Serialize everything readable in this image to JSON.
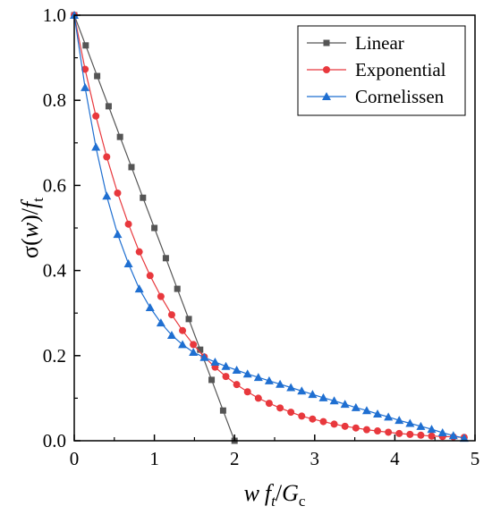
{
  "chart_data": {
    "type": "line",
    "xlabel": "wf_t/G_c",
    "ylabel": "σ(w)/f_t",
    "xlim": [
      0,
      5
    ],
    "ylim": [
      0,
      1
    ],
    "x_ticks": [
      "0",
      "1",
      "2",
      "3",
      "4",
      "5"
    ],
    "y_ticks": [
      "0.0",
      "0.2",
      "0.4",
      "0.6",
      "0.8",
      "1.0"
    ],
    "grid": false,
    "legend_position": "top-right",
    "series": [
      {
        "name": "Linear",
        "color": "#555555",
        "marker": "square",
        "x": [
          0,
          0.143,
          0.286,
          0.429,
          0.571,
          0.714,
          0.857,
          1.0,
          1.143,
          1.286,
          1.429,
          1.571,
          1.714,
          1.857,
          2.0
        ],
        "y": [
          1.0,
          0.929,
          0.857,
          0.786,
          0.714,
          0.643,
          0.571,
          0.5,
          0.429,
          0.357,
          0.286,
          0.214,
          0.143,
          0.071,
          0.0
        ]
      },
      {
        "name": "Exponential",
        "color": "#e8383d",
        "marker": "circle",
        "x": [
          0,
          0.135,
          0.27,
          0.405,
          0.541,
          0.676,
          0.811,
          0.946,
          1.081,
          1.216,
          1.351,
          1.486,
          1.622,
          1.757,
          1.892,
          2.027,
          2.162,
          2.297,
          2.432,
          2.568,
          2.703,
          2.838,
          2.973,
          3.108,
          3.243,
          3.378,
          3.514,
          3.649,
          3.784,
          3.919,
          4.054,
          4.189,
          4.324,
          4.459,
          4.595,
          4.73,
          4.865
        ],
        "y": [
          1.0,
          0.873,
          0.763,
          0.667,
          0.582,
          0.509,
          0.444,
          0.388,
          0.339,
          0.296,
          0.259,
          0.226,
          0.197,
          0.173,
          0.151,
          0.132,
          0.115,
          0.1,
          0.088,
          0.077,
          0.067,
          0.058,
          0.051,
          0.045,
          0.039,
          0.034,
          0.03,
          0.026,
          0.023,
          0.02,
          0.017,
          0.015,
          0.013,
          0.011,
          0.01,
          0.009,
          0.008
        ]
      },
      {
        "name": "Cornelissen",
        "color": "#1f6fd1",
        "marker": "triangle",
        "x": [
          0,
          0.135,
          0.27,
          0.405,
          0.541,
          0.676,
          0.811,
          0.946,
          1.081,
          1.216,
          1.351,
          1.486,
          1.622,
          1.757,
          1.892,
          2.027,
          2.162,
          2.297,
          2.432,
          2.568,
          2.703,
          2.838,
          2.973,
          3.108,
          3.243,
          3.378,
          3.514,
          3.649,
          3.784,
          3.919,
          4.054,
          4.189,
          4.324,
          4.459,
          4.595,
          4.73,
          4.865
        ],
        "y": [
          1.0,
          0.83,
          0.69,
          0.575,
          0.485,
          0.416,
          0.357,
          0.313,
          0.277,
          0.248,
          0.226,
          0.208,
          0.196,
          0.185,
          0.175,
          0.166,
          0.157,
          0.149,
          0.141,
          0.133,
          0.125,
          0.117,
          0.109,
          0.101,
          0.094,
          0.086,
          0.078,
          0.071,
          0.063,
          0.056,
          0.048,
          0.041,
          0.034,
          0.027,
          0.019,
          0.012,
          0.006
        ]
      }
    ]
  }
}
